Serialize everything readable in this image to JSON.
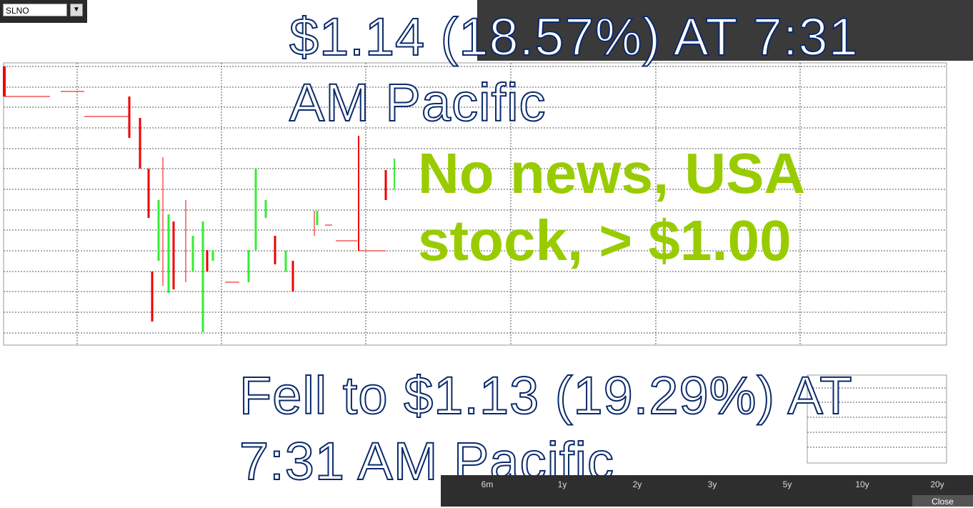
{
  "ticker": "SLNO",
  "headline": "$1.14 (18.57%) AT 7:31 AM Pacific",
  "note": "No news, USA stock, > $1.00",
  "subheadline": "Fell to $1.13 (19.29%) AT 7:31 AM Pacific",
  "periods": [
    "6m",
    "1y",
    "2y",
    "3y",
    "5y",
    "10y",
    "20y"
  ],
  "close_button": "Close"
}
